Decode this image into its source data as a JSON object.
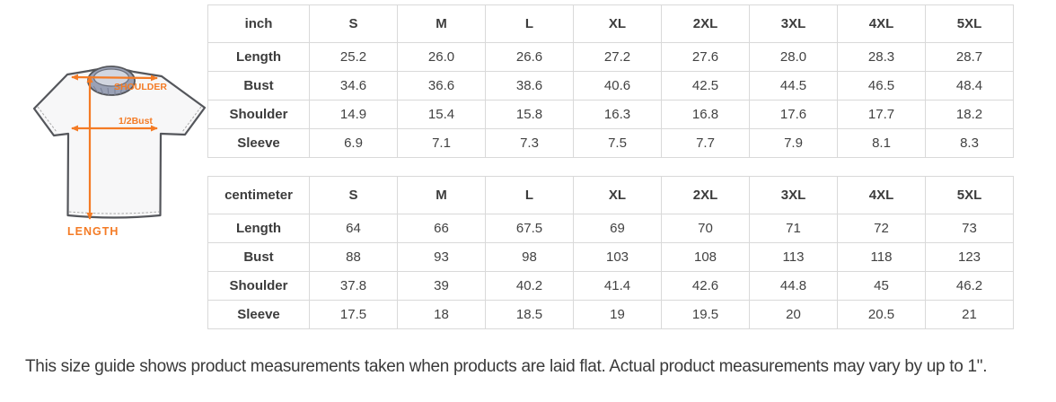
{
  "page": {
    "note": "This size guide shows product measurements taken when products are laid flat. Actual product measurements may vary by up to 1\"."
  },
  "diagram": {
    "labels": {
      "shoulder": "SHOULDER",
      "bust": "1/2Bust",
      "length": "LENGTH"
    },
    "colors": {
      "accent": "#f47b25",
      "outline": "#54565b",
      "collar": "#9aa1b5",
      "collar_inner": "#d2d6e0",
      "shirt_fill": "#f7f7f8",
      "stitch": "#a9a9a9"
    }
  },
  "tables": [
    {
      "unit_label": "inch",
      "columns": [
        "S",
        "M",
        "L",
        "XL",
        "2XL",
        "3XL",
        "4XL",
        "5XL"
      ],
      "rows": [
        {
          "label": "Length",
          "values": [
            "25.2",
            "26.0",
            "26.6",
            "27.2",
            "27.6",
            "28.0",
            "28.3",
            "28.7"
          ]
        },
        {
          "label": "Bust",
          "values": [
            "34.6",
            "36.6",
            "38.6",
            "40.6",
            "42.5",
            "44.5",
            "46.5",
            "48.4"
          ]
        },
        {
          "label": "Shoulder",
          "values": [
            "14.9",
            "15.4",
            "15.8",
            "16.3",
            "16.8",
            "17.6",
            "17.7",
            "18.2"
          ]
        },
        {
          "label": "Sleeve",
          "values": [
            "6.9",
            "7.1",
            "7.3",
            "7.5",
            "7.7",
            "7.9",
            "8.1",
            "8.3"
          ]
        }
      ]
    },
    {
      "unit_label": "centimeter",
      "columns": [
        "S",
        "M",
        "L",
        "XL",
        "2XL",
        "3XL",
        "4XL",
        "5XL"
      ],
      "rows": [
        {
          "label": "Length",
          "values": [
            "64",
            "66",
            "67.5",
            "69",
            "70",
            "71",
            "72",
            "73"
          ]
        },
        {
          "label": "Bust",
          "values": [
            "88",
            "93",
            "98",
            "103",
            "108",
            "113",
            "118",
            "123"
          ]
        },
        {
          "label": "Shoulder",
          "values": [
            "37.8",
            "39",
            "40.2",
            "41.4",
            "42.6",
            "44.8",
            "45",
            "46.2"
          ]
        },
        {
          "label": "Sleeve",
          "values": [
            "17.5",
            "18",
            "18.5",
            "19",
            "19.5",
            "20",
            "20.5",
            "21"
          ]
        }
      ]
    }
  ]
}
